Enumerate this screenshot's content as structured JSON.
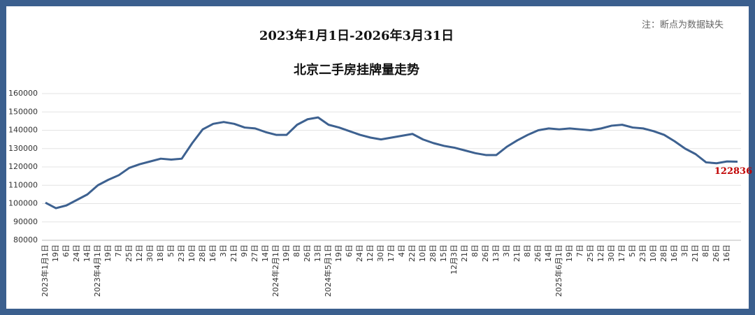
{
  "chart_data": {
    "type": "line",
    "title": "2023年1月1日-2026年3月31日",
    "subtitle": "北京二手房挂牌量走势",
    "note": "注：断点为数据缺失",
    "categories": [
      "2023年1月1日",
      "19日",
      "6日",
      "24日",
      "14日",
      "2023年4月1日",
      "19日",
      "7日",
      "25日",
      "12日",
      "30日",
      "18日",
      "5日",
      "23日",
      "10日",
      "28日",
      "16日",
      "3日",
      "21日",
      "9日",
      "27日",
      "14日",
      "2024年2月1日",
      "19日",
      "8日",
      "26日",
      "13日",
      "2024年5月1日",
      "19日",
      "6日",
      "24日",
      "12日",
      "30日",
      "17日",
      "4日",
      "22日",
      "10日",
      "28日",
      "15日",
      "12月3日",
      "21日",
      "8日",
      "26日",
      "13日",
      "3日",
      "21日",
      "8日",
      "26日",
      "14日",
      "2025年6月1日",
      "19日",
      "7日",
      "25日",
      "12日",
      "30日",
      "17日",
      "5日",
      "23日",
      "10日",
      "28日",
      "16日",
      "3日",
      "21日",
      "8日",
      "26日",
      "16日",
      null
    ],
    "series": [
      {
        "name": "北京二手房挂牌量",
        "color": "#3d6190",
        "values": [
          100500,
          97500,
          99000,
          102000,
          105000,
          110000,
          113000,
          115500,
          119500,
          121500,
          123000,
          124500,
          124000,
          124500,
          133000,
          140500,
          143500,
          144500,
          143500,
          141500,
          141000,
          139000,
          137500,
          137500,
          143000,
          146000,
          147000,
          143000,
          141500,
          139500,
          137500,
          136000,
          135000,
          136000,
          137000,
          138000,
          135000,
          133000,
          131500,
          130500,
          129000,
          127500,
          126500,
          126500,
          131000,
          134500,
          137500,
          140000,
          141000,
          140500,
          141000,
          140500,
          140000,
          141000,
          142500,
          143000,
          141500,
          141000,
          139500,
          137500,
          134000,
          130000,
          127000,
          122500,
          122000,
          123000,
          122836
        ]
      }
    ],
    "ylim": [
      80000,
      160000
    ],
    "yticks": [
      80000,
      90000,
      100000,
      110000,
      120000,
      130000,
      140000,
      150000,
      160000
    ],
    "grid": true
  }
}
